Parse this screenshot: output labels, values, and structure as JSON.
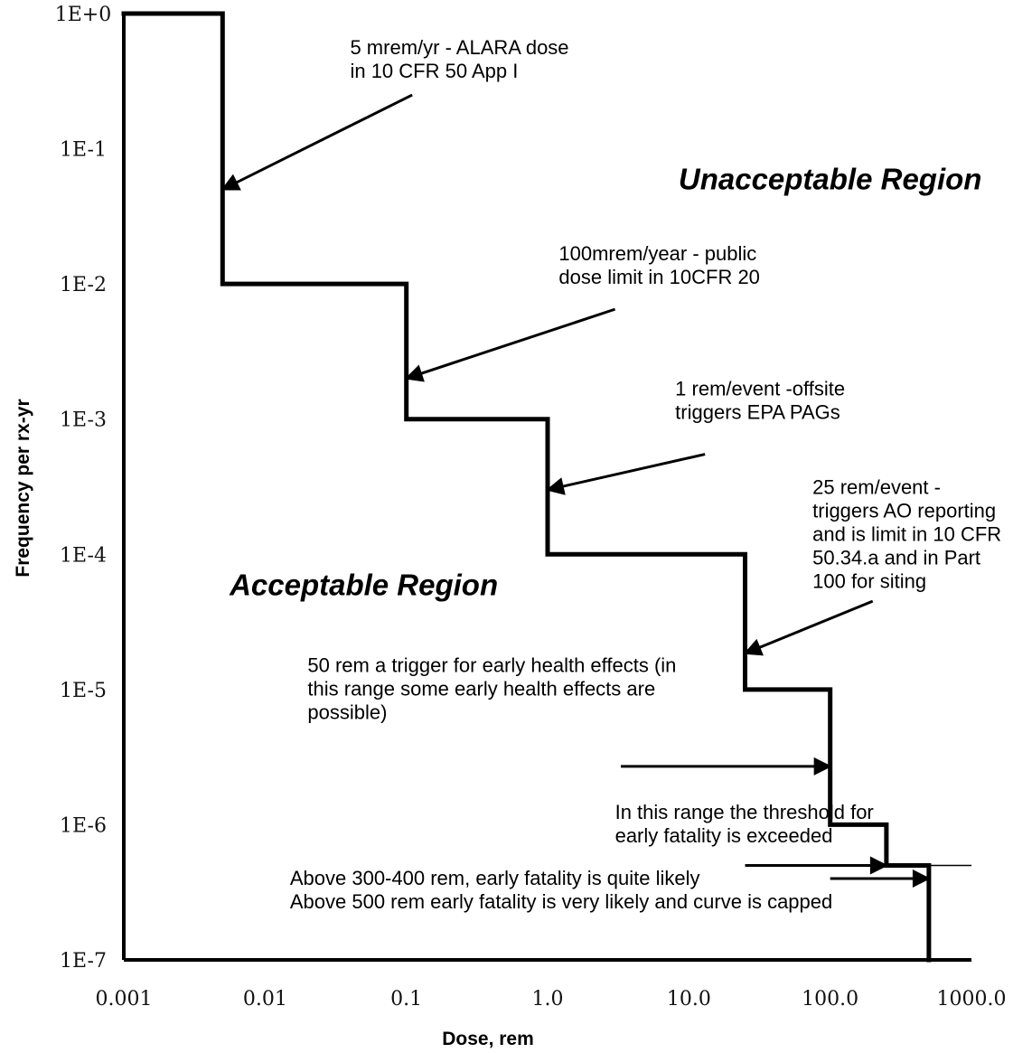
{
  "chart_data": {
    "type": "line",
    "title": "",
    "xlabel": "Dose, rem",
    "ylabel": "Frequency per rx-yr",
    "x_scale": "log",
    "y_scale": "log",
    "xlim": [
      0.001,
      1000
    ],
    "ylim": [
      1e-07,
      1
    ],
    "grid": false,
    "x_ticks": [
      {
        "value": 0.001,
        "label": "0.001"
      },
      {
        "value": 0.01,
        "label": "0.01"
      },
      {
        "value": 0.1,
        "label": "0.1"
      },
      {
        "value": 1,
        "label": "1.0"
      },
      {
        "value": 10,
        "label": "10.0"
      },
      {
        "value": 100,
        "label": "100.0"
      },
      {
        "value": 1000,
        "label": "1000.0"
      }
    ],
    "y_ticks": [
      {
        "value": 1,
        "label": "1E+0"
      },
      {
        "value": 0.1,
        "label": "1E-1"
      },
      {
        "value": 0.01,
        "label": "1E-2"
      },
      {
        "value": 0.001,
        "label": "1E-3"
      },
      {
        "value": 0.0001,
        "label": "1E-4"
      },
      {
        "value": 1e-05,
        "label": "1E-5"
      },
      {
        "value": 1e-06,
        "label": "1E-6"
      },
      {
        "value": 1e-07,
        "label": "1E-7"
      }
    ],
    "step_curve": {
      "points": [
        [
          0.001,
          1
        ],
        [
          0.005,
          1
        ],
        [
          0.005,
          0.01
        ],
        [
          0.1,
          0.01
        ],
        [
          0.1,
          0.001
        ],
        [
          1,
          0.001
        ],
        [
          1,
          0.0001
        ],
        [
          25,
          0.0001
        ],
        [
          25,
          1e-05
        ],
        [
          100,
          1e-05
        ],
        [
          100,
          1e-06
        ],
        [
          250,
          1e-06
        ],
        [
          250,
          5e-07
        ],
        [
          500,
          5e-07
        ],
        [
          500,
          1e-07
        ]
      ]
    },
    "thin_segment": [
      [
        500,
        5e-07
      ],
      [
        1000,
        5e-07
      ]
    ],
    "regions": [
      {
        "label": "Unacceptable Region",
        "x": 100,
        "y": 0.05
      },
      {
        "label": "Acceptable Region",
        "x": 0.05,
        "y": 5e-05
      }
    ],
    "annotations": [
      {
        "lines": [
          "5 mrem/yr - ALARA dose",
          "in 10 CFR 50 App I"
        ],
        "text_at": [
          0.04,
          0.5
        ],
        "arrow_from": [
          0.11,
          0.25
        ],
        "arrow_to": [
          0.005,
          0.05
        ]
      },
      {
        "lines": [
          "100mrem/year - public",
          "dose limit in 10CFR 20"
        ],
        "text_at": [
          1.2,
          0.015
        ],
        "arrow_from": [
          3,
          0.0065
        ],
        "arrow_to": [
          0.1,
          0.002
        ]
      },
      {
        "lines": [
          "1 rem/event -offsite",
          "triggers EPA PAGs"
        ],
        "text_at": [
          8,
          0.0015
        ],
        "arrow_from": [
          13,
          0.00055
        ],
        "arrow_to": [
          1,
          0.0003
        ]
      },
      {
        "lines": [
          "25 rem/event -",
          "triggers AO reporting",
          "and is limit in 10 CFR",
          "50.34.a and in Part",
          "100 for siting"
        ],
        "text_at": [
          75,
          0.00028
        ],
        "arrow_from": [
          200,
          4.5e-05
        ],
        "arrow_to": [
          25,
          1.85e-05
        ]
      },
      {
        "lines": [
          "50 rem a trigger for early health effects (in",
          "this range some early health effects are",
          "possible)"
        ],
        "text_at": [
          0.02,
          1.35e-05
        ],
        "arrow_from": [
          3.3,
          2.7e-06
        ],
        "arrow_to": [
          100,
          2.7e-06
        ]
      },
      {
        "lines": [
          "In this range the threshold for",
          "early fatality is exceeded"
        ],
        "text_at": [
          3,
          1.1e-06
        ],
        "arrow_from": [
          25,
          5e-07
        ],
        "arrow_to": [
          250,
          5e-07
        ]
      },
      {
        "lines": [
          "Above 300-400 rem, early fatality is quite likely",
          "Above 500 rem early fatality is very likely and curve is capped"
        ],
        "text_at": [
          0.015,
          3.6e-07
        ],
        "arrow_from": [
          100,
          4e-07
        ],
        "arrow_to": [
          500,
          4e-07
        ]
      }
    ]
  }
}
